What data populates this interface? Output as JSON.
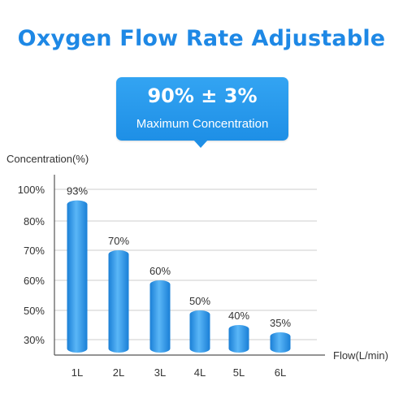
{
  "header": {
    "title": "Oxygen Flow Rate Adjustable"
  },
  "callout": {
    "value": "90% ± 3%",
    "caption": "Maximum Concentration"
  },
  "colors": {
    "accent": "#1e88e5",
    "bar_light": "#5ab6f7",
    "bar_dark": "#1a7fd6",
    "grid": "#cccccc",
    "axis": "#555555",
    "text": "#333333"
  },
  "chart_data": {
    "type": "bar",
    "title": "",
    "ylabel": "Concentration(%)",
    "xlabel": "Flow(L/min)",
    "categories": [
      "1L",
      "2L",
      "3L",
      "4L",
      "5L",
      "6L"
    ],
    "values": [
      93,
      70,
      60,
      50,
      40,
      35
    ],
    "value_labels": [
      "93%",
      "70%",
      "60%",
      "50%",
      "40%",
      "35%"
    ],
    "yticks": [
      30,
      50,
      60,
      70,
      80,
      100
    ],
    "ytick_labels": [
      "30%",
      "50%",
      "60%",
      "70%",
      "80%",
      "100%"
    ],
    "ylim": [
      25,
      100
    ],
    "grid": true,
    "legend": "none"
  }
}
